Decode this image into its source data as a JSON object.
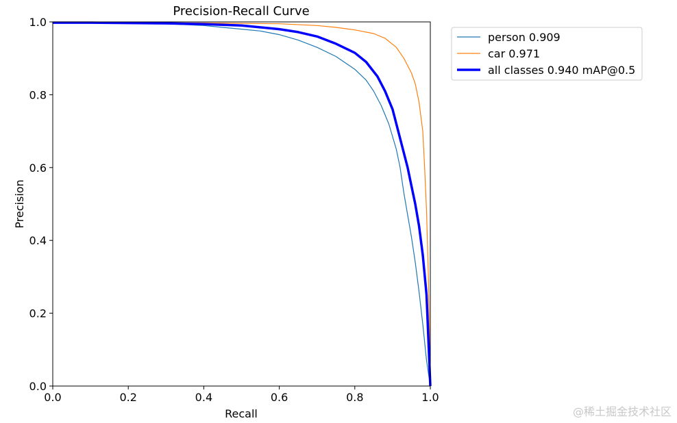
{
  "chart_data": {
    "type": "line",
    "title": "Precision-Recall Curve",
    "xlabel": "Recall",
    "ylabel": "Precision",
    "xlim": [
      0,
      1
    ],
    "ylim": [
      0,
      1
    ],
    "xticks": [
      "0.0",
      "0.2",
      "0.4",
      "0.6",
      "0.8",
      "1.0"
    ],
    "yticks": [
      "0.0",
      "0.2",
      "0.4",
      "0.6",
      "0.8",
      "1.0"
    ],
    "grid": false,
    "legend_position": "outside-top-right",
    "series": [
      {
        "name": "person 0.909",
        "color": "#1f77b4",
        "x": [
          0,
          0.1,
          0.2,
          0.3,
          0.4,
          0.45,
          0.5,
          0.55,
          0.6,
          0.65,
          0.7,
          0.75,
          0.8,
          0.83,
          0.85,
          0.87,
          0.89,
          0.91,
          0.92,
          0.93,
          0.94,
          0.95,
          0.96,
          0.97,
          0.98,
          0.99,
          1.0
        ],
        "y": [
          0.998,
          0.997,
          0.996,
          0.995,
          0.99,
          0.985,
          0.98,
          0.975,
          0.965,
          0.95,
          0.93,
          0.905,
          0.87,
          0.84,
          0.81,
          0.77,
          0.72,
          0.65,
          0.6,
          0.53,
          0.47,
          0.41,
          0.34,
          0.26,
          0.17,
          0.07,
          0.0
        ]
      },
      {
        "name": "car 0.971",
        "color": "#ff7f0e",
        "x": [
          0,
          0.2,
          0.4,
          0.6,
          0.7,
          0.75,
          0.8,
          0.85,
          0.88,
          0.91,
          0.93,
          0.95,
          0.96,
          0.97,
          0.98,
          0.985,
          0.99,
          0.995,
          1.0
        ],
        "y": [
          0.998,
          0.998,
          0.997,
          0.995,
          0.99,
          0.985,
          0.978,
          0.968,
          0.955,
          0.93,
          0.9,
          0.86,
          0.83,
          0.78,
          0.7,
          0.6,
          0.48,
          0.3,
          0.0
        ]
      },
      {
        "name": "all classes 0.940 mAP@0.5",
        "color": "#0000ff",
        "x": [
          0,
          0.1,
          0.2,
          0.3,
          0.4,
          0.5,
          0.6,
          0.65,
          0.7,
          0.75,
          0.8,
          0.83,
          0.86,
          0.88,
          0.9,
          0.92,
          0.94,
          0.95,
          0.96,
          0.97,
          0.98,
          0.99,
          1.0
        ],
        "y": [
          0.998,
          0.998,
          0.997,
          0.996,
          0.994,
          0.99,
          0.98,
          0.972,
          0.96,
          0.94,
          0.915,
          0.89,
          0.85,
          0.81,
          0.76,
          0.68,
          0.6,
          0.55,
          0.5,
          0.44,
          0.36,
          0.25,
          0.0
        ]
      }
    ]
  },
  "watermark": "@稀土掘金技术社区"
}
